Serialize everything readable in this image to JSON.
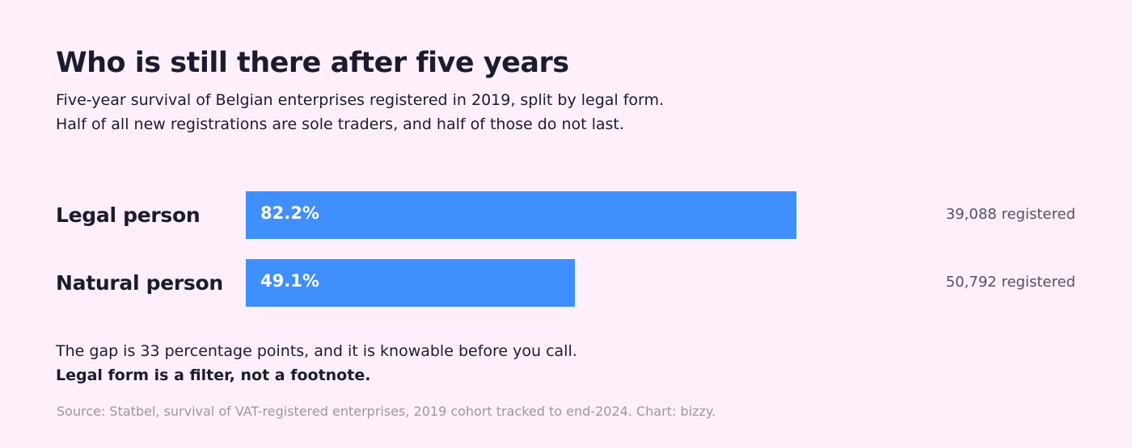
{
  "colors": {
    "background": "#fdf0fa",
    "bar": "#3f8ffc",
    "text": "#1c1b2e",
    "muted": "#9a97a3"
  },
  "chart_data": {
    "type": "bar",
    "orientation": "horizontal",
    "title": "Who is still there after five years",
    "subtitle": [
      "Five-year survival of Belgian enterprises registered in 2019, split by legal form.",
      "Half of all new registrations are sole traders, and half of those do not last."
    ],
    "categories": [
      "Legal person",
      "Natural person"
    ],
    "values": [
      82.2,
      49.1
    ],
    "value_labels": [
      "82.2%",
      "49.1%"
    ],
    "counts": [
      "39,088 registered",
      "50,792 registered"
    ],
    "xlim": [
      0,
      100
    ],
    "grid": false
  },
  "note": "The gap is 33 percentage points, and it is knowable before you call.",
  "note_strong": "Legal form is a filter, not a footnote.",
  "source": "Source: Statbel, survival of VAT-registered enterprises, 2019 cohort tracked to end-2024. Chart: bizzy."
}
